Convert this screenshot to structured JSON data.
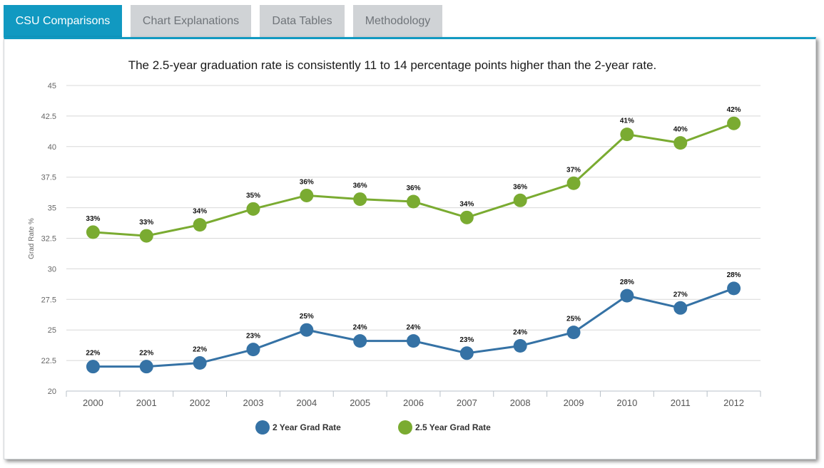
{
  "tabs": [
    {
      "label": "CSU Comparisons",
      "active": true
    },
    {
      "label": "Chart Explanations",
      "active": false
    },
    {
      "label": "Data Tables",
      "active": false
    },
    {
      "label": "Methodology",
      "active": false
    }
  ],
  "colors": {
    "accent": "#1199c1",
    "series_2yr": "#3572a5",
    "series_25yr": "#7aab31"
  },
  "chart_data": {
    "type": "line",
    "title": "The 2.5-year graduation rate is consistently 11 to 14 percentage points higher than the 2-year rate.",
    "xlabel": "",
    "ylabel": "Grad Rate %",
    "ylim": [
      20,
      45
    ],
    "yticks": [
      "20",
      "22.5",
      "25",
      "27.5",
      "30",
      "32.5",
      "35",
      "37.5",
      "40",
      "42.5",
      "45"
    ],
    "categories": [
      "2000",
      "2001",
      "2002",
      "2003",
      "2004",
      "2005",
      "2006",
      "2007",
      "2008",
      "2009",
      "2010",
      "2011",
      "2012"
    ],
    "grid": true,
    "legend_position": "bottom",
    "series": [
      {
        "name": "2 Year Grad Rate",
        "values": [
          22.0,
          22.0,
          22.3,
          23.4,
          25.0,
          24.1,
          24.1,
          23.1,
          23.7,
          24.8,
          27.8,
          26.8,
          28.4
        ],
        "labels": [
          "22%",
          "22%",
          "22%",
          "23%",
          "25%",
          "24%",
          "24%",
          "23%",
          "24%",
          "25%",
          "28%",
          "27%",
          "28%"
        ]
      },
      {
        "name": "2.5 Year Grad Rate",
        "values": [
          33.0,
          32.7,
          33.6,
          34.9,
          36.0,
          35.7,
          35.5,
          34.2,
          35.6,
          37.0,
          41.0,
          40.3,
          41.9
        ],
        "labels": [
          "33%",
          "33%",
          "34%",
          "35%",
          "36%",
          "36%",
          "36%",
          "34%",
          "36%",
          "37%",
          "41%",
          "40%",
          "42%"
        ]
      }
    ]
  }
}
